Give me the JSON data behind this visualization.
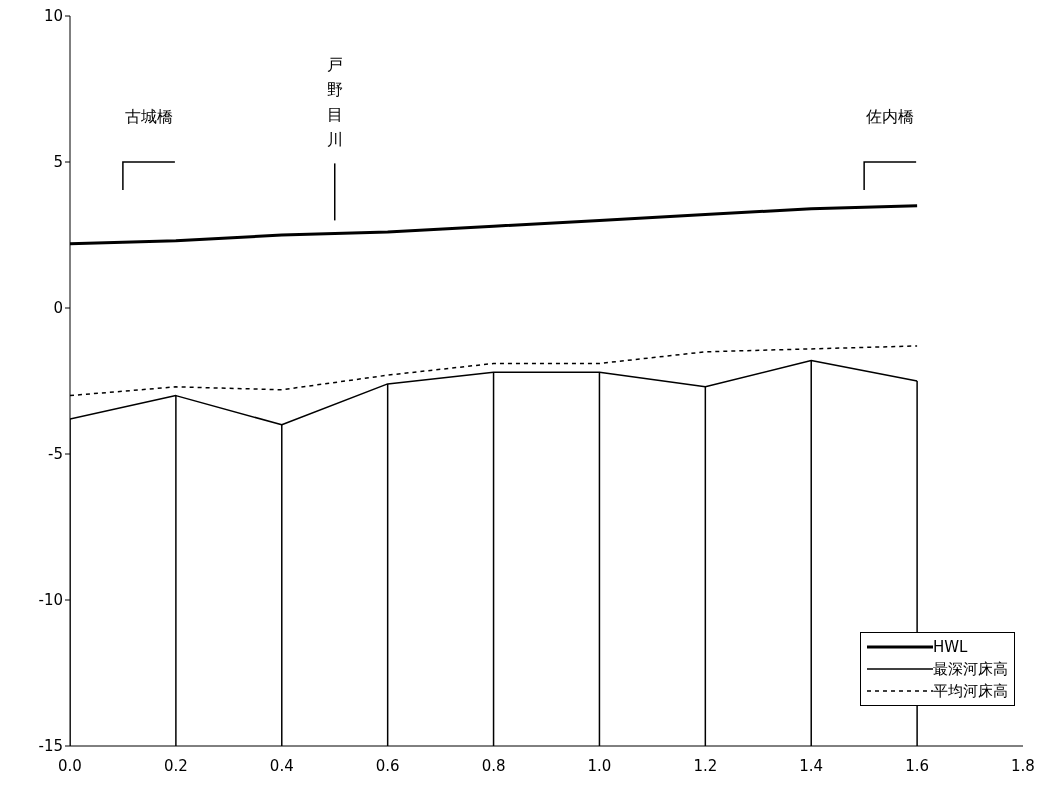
{
  "chart_data": {
    "type": "line",
    "x": [
      0,
      0.2,
      0.4,
      0.6,
      0.8,
      1.0,
      1.2,
      1.4,
      1.6
    ],
    "series": [
      {
        "name": "HWL",
        "color": "#000000",
        "values": [
          2.2,
          2.3,
          2.5,
          2.6,
          2.8,
          3.0,
          3.2,
          3.4,
          3.5
        ],
        "line_style": "solid"
      },
      {
        "name": "最深河床高",
        "color": "#000000",
        "values": [
          -3.8,
          -3.0,
          -4.0,
          -2.6,
          -2.2,
          -2.2,
          -2.7,
          -1.8,
          -2.5
        ],
        "line_style": "solid",
        "errors": [
          [
            -15,
            -3.8
          ],
          [
            -15,
            -3.0
          ],
          [
            -15,
            -4.0
          ],
          [
            -15,
            -2.6
          ],
          [
            -15,
            -2.2
          ],
          [
            -15,
            -2.2
          ],
          [
            -15,
            -2.7
          ],
          [
            -15,
            -1.8
          ],
          [
            -15,
            -2.5
          ]
        ]
      },
      {
        "name": "平均河床高",
        "color": "#000000",
        "values": [
          -3.0,
          -2.7,
          -2.8,
          -2.3,
          -1.9,
          -1.9,
          -1.5,
          -1.4,
          -1.3
        ],
        "line_style": "dashed"
      }
    ],
    "xlim": [
      0,
      1.8
    ],
    "xticks": [
      {
        "value": 0,
        "label": "0.0"
      },
      {
        "value": 0.2,
        "label": "0.2"
      },
      {
        "value": 0.4,
        "label": "0.4"
      },
      {
        "value": 0.6,
        "label": "0.6"
      },
      {
        "value": 0.8,
        "label": "0.8"
      },
      {
        "value": 1.0,
        "label": "1.0"
      },
      {
        "value": 1.2,
        "label": "1.2"
      },
      {
        "value": 1.4,
        "label": "1.4"
      },
      {
        "value": 1.6,
        "label": "1.6"
      },
      {
        "value": 1.8,
        "label": "1.8"
      }
    ],
    "ylim": [
      -15,
      10
    ],
    "yticks": [
      -15,
      -10,
      -5,
      0,
      5,
      10
    ],
    "annotations": [
      "古城橋",
      "戸野目川",
      "佐内橋"
    ],
    "legend": "bottom right",
    "grid": false,
    "marker": "none"
  }
}
